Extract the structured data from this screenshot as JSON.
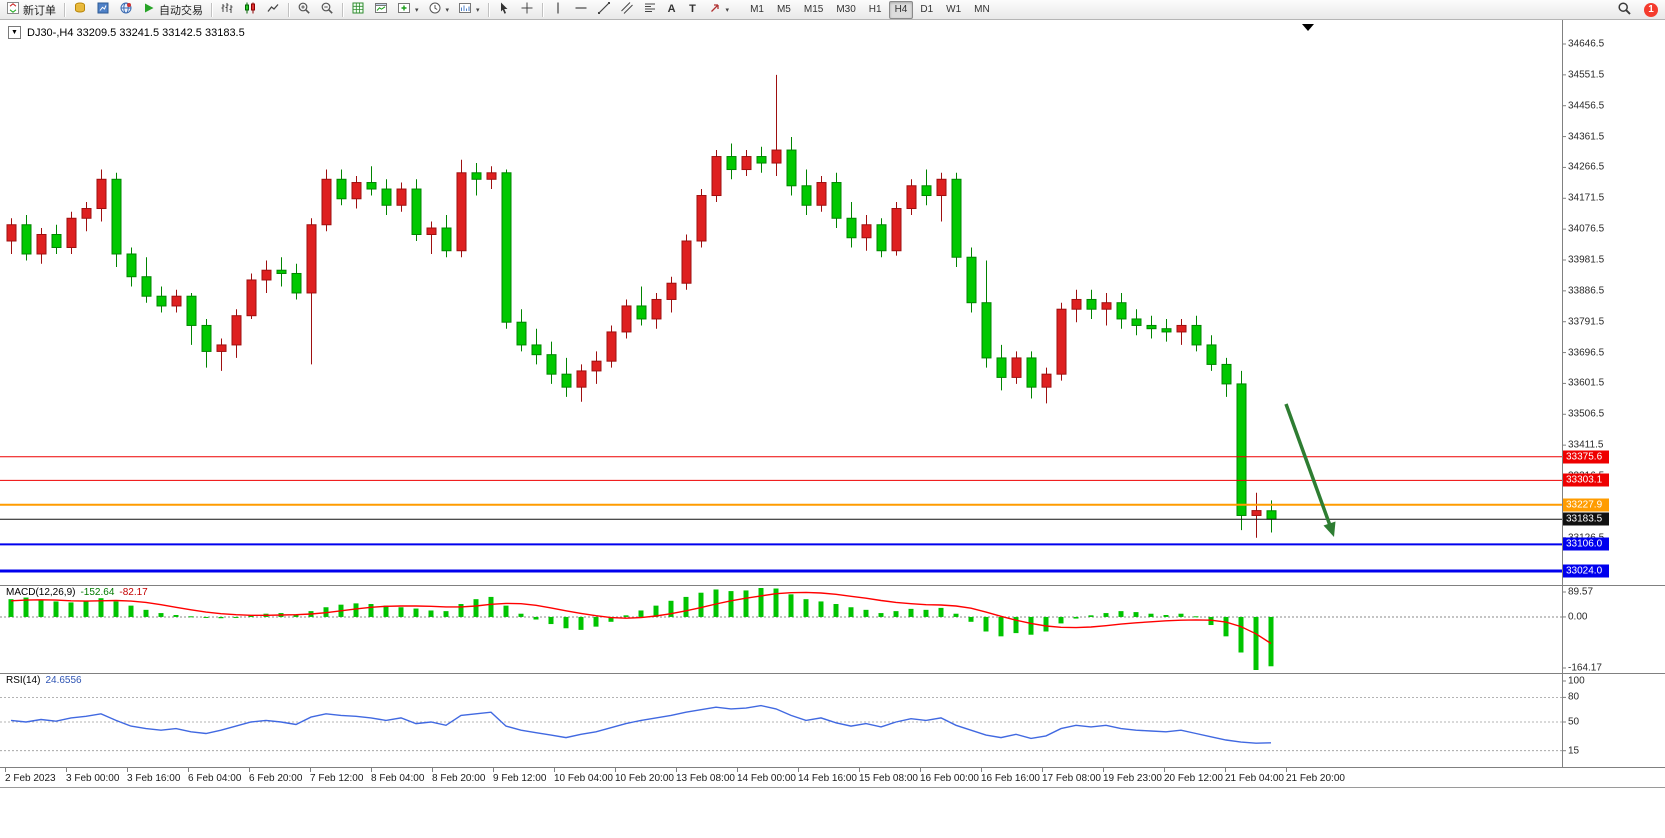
{
  "toolbar": {
    "new_order_label": "新订单",
    "auto_trading_label": "自动交易",
    "timeframes": [
      "M1",
      "M5",
      "M15",
      "M30",
      "H1",
      "H4",
      "D1",
      "W1",
      "MN"
    ],
    "active_timeframe": "H4",
    "notification_count": "1"
  },
  "chart": {
    "title": "DJ30-,H4 33209.5 33241.5 33142.5 33183.5"
  },
  "indicators": {
    "macd": {
      "label": "MACD(12,26,9)",
      "value": "-152.64",
      "signal": "-82.17",
      "axis_labels": [
        "89.57",
        "0.00",
        "-164.17"
      ]
    },
    "rsi": {
      "label": "RSI(14)",
      "value": "24.6556",
      "axis_labels": [
        "100",
        "80",
        "50",
        "15"
      ]
    }
  },
  "price_axis_ticks": [
    "34646.5",
    "34551.5",
    "34456.5",
    "34361.5",
    "34266.5",
    "34171.5",
    "34076.5",
    "33981.5",
    "33886.5",
    "33791.5",
    "33696.5",
    "33601.5",
    "33506.5",
    "33411.5",
    "33316.5",
    "33126.5"
  ],
  "levels": [
    {
      "label": "33375.6",
      "color": "#ee0000",
      "width": 1
    },
    {
      "label": "33303.1",
      "color": "#ee0000",
      "width": 1
    },
    {
      "label": "33227.9",
      "color": "#ff9c00",
      "width": 2
    },
    {
      "label": "33183.5",
      "color": "#111111",
      "width": 1
    },
    {
      "label": "33106.0",
      "color": "#0000ee",
      "width": 2
    },
    {
      "label": "33024.0",
      "color": "#0000ee",
      "width": 3
    }
  ],
  "time_axis": [
    "2 Feb 2023",
    "3 Feb 00:00",
    "3 Feb 16:00",
    "6 Feb 04:00",
    "6 Feb 20:00",
    "7 Feb 12:00",
    "8 Feb 04:00",
    "8 Feb 20:00",
    "9 Feb 12:00",
    "10 Feb 04:00",
    "10 Feb 20:00",
    "13 Feb 08:00",
    "14 Feb 00:00",
    "14 Feb 16:00",
    "15 Feb 08:00",
    "16 Feb 00:00",
    "16 Feb 16:00",
    "17 Feb 08:00",
    "19 Feb 23:00",
    "20 Feb 12:00",
    "21 Feb 04:00",
    "21 Feb 20:00"
  ],
  "annotations": {
    "arrow": {
      "color": "#2e7d32"
    }
  },
  "chart_data": {
    "type": "candlestick",
    "symbol": "DJ30-",
    "period": "H4",
    "price_axis_range": [
      33024.0,
      34646.5
    ],
    "colors": {
      "up": "#de2020",
      "up_stroke": "#9e0f0f",
      "down": "#00c800",
      "down_stroke": "#008400",
      "macd_histogram": "#00c400",
      "macd_signal": "#ff0000",
      "rsi_line": "#4169e1"
    },
    "candles": [
      [
        34040,
        34110,
        34000,
        34090
      ],
      [
        34090,
        34120,
        33980,
        34000
      ],
      [
        34000,
        34080,
        33970,
        34060
      ],
      [
        34060,
        34090,
        34000,
        34020
      ],
      [
        34020,
        34130,
        34000,
        34110
      ],
      [
        34110,
        34160,
        34070,
        34140
      ],
      [
        34140,
        34260,
        34100,
        34230
      ],
      [
        34230,
        34250,
        33960,
        34000
      ],
      [
        34000,
        34020,
        33900,
        33930
      ],
      [
        33930,
        33990,
        33850,
        33870
      ],
      [
        33870,
        33900,
        33820,
        33840
      ],
      [
        33840,
        33890,
        33820,
        33870
      ],
      [
        33870,
        33880,
        33720,
        33780
      ],
      [
        33780,
        33800,
        33650,
        33700
      ],
      [
        33700,
        33740,
        33640,
        33720
      ],
      [
        33720,
        33830,
        33680,
        33810
      ],
      [
        33810,
        33940,
        33800,
        33920
      ],
      [
        33920,
        33980,
        33880,
        33950
      ],
      [
        33950,
        33990,
        33900,
        33940
      ],
      [
        33940,
        33970,
        33860,
        33880
      ],
      [
        33880,
        34110,
        33660,
        34090
      ],
      [
        34090,
        34260,
        34070,
        34230
      ],
      [
        34230,
        34260,
        34150,
        34170
      ],
      [
        34170,
        34240,
        34140,
        34220
      ],
      [
        34220,
        34270,
        34180,
        34200
      ],
      [
        34200,
        34230,
        34120,
        34150
      ],
      [
        34150,
        34220,
        34130,
        34200
      ],
      [
        34200,
        34230,
        34040,
        34060
      ],
      [
        34060,
        34100,
        34000,
        34080
      ],
      [
        34080,
        34120,
        33990,
        34010
      ],
      [
        34010,
        34290,
        33990,
        34250
      ],
      [
        34250,
        34280,
        34180,
        34230
      ],
      [
        34230,
        34270,
        34200,
        34250
      ],
      [
        34250,
        34260,
        33770,
        33790
      ],
      [
        33790,
        33830,
        33700,
        33720
      ],
      [
        33720,
        33770,
        33660,
        33690
      ],
      [
        33690,
        33730,
        33600,
        33630
      ],
      [
        33630,
        33680,
        33560,
        33590
      ],
      [
        33590,
        33660,
        33545,
        33640
      ],
      [
        33640,
        33700,
        33600,
        33670
      ],
      [
        33670,
        33780,
        33650,
        33760
      ],
      [
        33760,
        33860,
        33740,
        33840
      ],
      [
        33840,
        33900,
        33780,
        33800
      ],
      [
        33800,
        33880,
        33770,
        33860
      ],
      [
        33860,
        33930,
        33820,
        33910
      ],
      [
        33910,
        34060,
        33890,
        34040
      ],
      [
        34040,
        34200,
        34020,
        34180
      ],
      [
        34180,
        34320,
        34160,
        34300
      ],
      [
        34300,
        34340,
        34230,
        34260
      ],
      [
        34260,
        34320,
        34240,
        34300
      ],
      [
        34300,
        34330,
        34250,
        34280
      ],
      [
        34280,
        34551.5,
        34240,
        34320
      ],
      [
        34320,
        34360,
        34180,
        34210
      ],
      [
        34210,
        34260,
        34120,
        34150
      ],
      [
        34150,
        34240,
        34130,
        34220
      ],
      [
        34220,
        34250,
        34080,
        34110
      ],
      [
        34110,
        34160,
        34020,
        34050
      ],
      [
        34050,
        34120,
        34010,
        34090
      ],
      [
        34090,
        34110,
        33990,
        34010
      ],
      [
        34010,
        34160,
        33995,
        34140
      ],
      [
        34140,
        34230,
        34120,
        34210
      ],
      [
        34210,
        34260,
        34150,
        34180
      ],
      [
        34180,
        34250,
        34100,
        34230
      ],
      [
        34230,
        34250,
        33960,
        33990
      ],
      [
        33990,
        34020,
        33820,
        33850
      ],
      [
        33850,
        33980,
        33650,
        33680
      ],
      [
        33680,
        33720,
        33580,
        33620
      ],
      [
        33620,
        33700,
        33600,
        33680
      ],
      [
        33680,
        33700,
        33555,
        33590
      ],
      [
        33590,
        33650,
        33540,
        33630
      ],
      [
        33630,
        33850,
        33610,
        33830
      ],
      [
        33830,
        33890,
        33790,
        33860
      ],
      [
        33860,
        33890,
        33800,
        33830
      ],
      [
        33830,
        33880,
        33780,
        33850
      ],
      [
        33850,
        33880,
        33770,
        33800
      ],
      [
        33800,
        33830,
        33750,
        33780
      ],
      [
        33780,
        33810,
        33740,
        33770
      ],
      [
        33770,
        33800,
        33730,
        33760
      ],
      [
        33760,
        33800,
        33720,
        33780
      ],
      [
        33780,
        33810,
        33700,
        33720
      ],
      [
        33720,
        33750,
        33640,
        33660
      ],
      [
        33660,
        33680,
        33560,
        33600
      ],
      [
        33600,
        33640,
        33150,
        33195
      ],
      [
        33195,
        33265,
        33126.5,
        33210
      ],
      [
        33209.5,
        33241.5,
        33142.5,
        33183.5
      ]
    ],
    "macd": {
      "range": [
        -164.17,
        89.57
      ],
      "histogram": [
        55,
        60,
        52,
        48,
        45,
        50,
        58,
        48,
        35,
        22,
        12,
        6,
        2,
        -2,
        -4,
        0,
        6,
        10,
        12,
        8,
        18,
        30,
        38,
        42,
        40,
        35,
        30,
        26,
        20,
        18,
        40,
        55,
        62,
        35,
        10,
        -8,
        -22,
        -35,
        -40,
        -30,
        -15,
        5,
        20,
        35,
        50,
        62,
        75,
        85,
        80,
        82,
        89.57,
        88,
        70,
        55,
        48,
        40,
        30,
        22,
        12,
        18,
        25,
        22,
        28,
        10,
        -15,
        -45,
        -60,
        -50,
        -55,
        -45,
        -20,
        -5,
        5,
        12,
        18,
        15,
        10,
        6,
        10,
        2,
        -25,
        -60,
        -110,
        -164.17,
        -152.64
      ],
      "signal": [
        50,
        52,
        53,
        52,
        50,
        49,
        50,
        51,
        49,
        45,
        38,
        30,
        22,
        15,
        10,
        7,
        5,
        5,
        6,
        7,
        9,
        13,
        19,
        25,
        30,
        33,
        34,
        34,
        33,
        31,
        31,
        34,
        39,
        42,
        41,
        36,
        28,
        19,
        11,
        4,
        -2,
        -4,
        -2,
        3,
        10,
        19,
        29,
        40,
        50,
        58,
        65,
        72,
        75,
        76,
        74,
        70,
        64,
        58,
        51,
        45,
        41,
        38,
        37,
        34,
        27,
        15,
        2,
        -10,
        -20,
        -28,
        -32,
        -33,
        -31,
        -27,
        -22,
        -18,
        -15,
        -12,
        -10,
        -9,
        -10,
        -16,
        -30,
        -52,
        -82.17
      ]
    },
    "rsi": {
      "range": [
        0,
        100
      ],
      "levels": [
        80,
        50,
        15
      ],
      "values": [
        52,
        50,
        53,
        51,
        55,
        57,
        60,
        52,
        45,
        42,
        40,
        42,
        38,
        36,
        40,
        45,
        50,
        52,
        50,
        47,
        56,
        60,
        58,
        57,
        55,
        52,
        55,
        48,
        50,
        46,
        58,
        60,
        62,
        45,
        40,
        37,
        34,
        31,
        35,
        38,
        43,
        48,
        52,
        55,
        58,
        62,
        65,
        68,
        66,
        67,
        70,
        66,
        58,
        52,
        55,
        49,
        45,
        48,
        44,
        50,
        54,
        52,
        55,
        46,
        40,
        34,
        31,
        35,
        30,
        33,
        42,
        46,
        44,
        46,
        42,
        40,
        39,
        38,
        40,
        36,
        32,
        28,
        25.5,
        24.2,
        24.6556
      ]
    }
  }
}
